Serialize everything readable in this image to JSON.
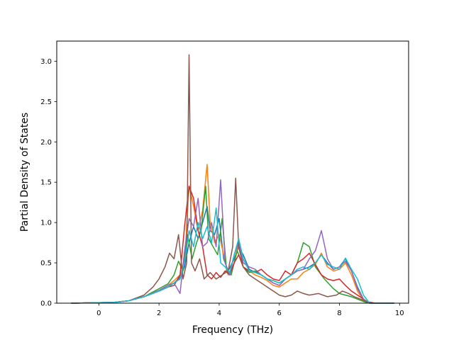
{
  "chart_data": {
    "type": "line",
    "title": "",
    "xlabel": "Frequency (THz)",
    "ylabel": "Partial Density of States",
    "xlim": [
      -1.4,
      10.3
    ],
    "ylim": [
      0,
      3.25
    ],
    "xticks": [
      0,
      2,
      4,
      6,
      8,
      10
    ],
    "xtick_labels": [
      "0",
      "2",
      "4",
      "6",
      "8",
      "10"
    ],
    "yticks": [
      0.0,
      0.5,
      1.0,
      1.5,
      2.0,
      2.5,
      3.0
    ],
    "ytick_labels": [
      "0.0",
      "0.5",
      "1.0",
      "1.5",
      "2.0",
      "2.5",
      "3.0"
    ],
    "grid": false,
    "legend": false,
    "series": [
      {
        "color": "#1f77b4",
        "x": [
          -0.9,
          0.5,
          1.0,
          1.5,
          2.0,
          2.3,
          2.5,
          2.7,
          2.85,
          3.0,
          3.15,
          3.3,
          3.45,
          3.6,
          3.7,
          3.85,
          4.0,
          4.15,
          4.3,
          4.5,
          4.65,
          4.8,
          5.0,
          5.2,
          5.4,
          5.6,
          5.8,
          6.0,
          6.2,
          6.4,
          6.6,
          6.8,
          7.0,
          7.2,
          7.4,
          7.6,
          7.8,
          8.0,
          8.2,
          8.4,
          8.6,
          8.8,
          9.0,
          9.8
        ],
        "y": [
          0.0,
          0.01,
          0.03,
          0.08,
          0.15,
          0.2,
          0.25,
          0.32,
          0.45,
          0.75,
          0.95,
          0.8,
          1.0,
          1.2,
          0.9,
          0.85,
          1.05,
          0.55,
          0.4,
          0.55,
          0.7,
          0.6,
          0.42,
          0.38,
          0.35,
          0.3,
          0.25,
          0.22,
          0.3,
          0.35,
          0.4,
          0.42,
          0.45,
          0.5,
          0.6,
          0.5,
          0.42,
          0.45,
          0.55,
          0.4,
          0.2,
          0.05,
          0.0,
          0.0
        ]
      },
      {
        "color": "#ff7f0e",
        "x": [
          -0.9,
          0.5,
          1.0,
          1.5,
          2.0,
          2.3,
          2.5,
          2.7,
          2.85,
          3.0,
          3.15,
          3.3,
          3.45,
          3.6,
          3.7,
          3.85,
          4.0,
          4.15,
          4.3,
          4.5,
          4.65,
          4.8,
          5.0,
          5.2,
          5.4,
          5.6,
          5.8,
          6.0,
          6.2,
          6.4,
          6.6,
          6.8,
          7.0,
          7.2,
          7.4,
          7.6,
          7.8,
          8.0,
          8.2,
          8.4,
          8.6,
          8.8,
          9.0,
          9.8
        ],
        "y": [
          0.0,
          0.01,
          0.03,
          0.08,
          0.16,
          0.22,
          0.28,
          0.35,
          0.5,
          1.45,
          1.2,
          0.9,
          1.15,
          1.72,
          1.0,
          0.75,
          0.85,
          0.6,
          0.35,
          0.5,
          0.75,
          0.55,
          0.4,
          0.35,
          0.32,
          0.28,
          0.22,
          0.2,
          0.25,
          0.3,
          0.3,
          0.38,
          0.42,
          0.48,
          0.62,
          0.45,
          0.4,
          0.42,
          0.5,
          0.35,
          0.15,
          0.03,
          0.0,
          0.0
        ]
      },
      {
        "color": "#2ca02c",
        "x": [
          -0.9,
          0.5,
          1.0,
          1.5,
          2.0,
          2.3,
          2.5,
          2.65,
          2.8,
          2.95,
          3.1,
          3.25,
          3.4,
          3.55,
          3.65,
          3.8,
          3.95,
          4.1,
          4.25,
          4.4,
          4.6,
          4.8,
          5.0,
          5.2,
          5.4,
          5.6,
          5.8,
          6.0,
          6.2,
          6.4,
          6.6,
          6.8,
          7.0,
          7.2,
          7.5,
          7.8,
          8.0,
          8.2,
          8.4,
          8.6,
          8.8,
          9.0,
          9.8
        ],
        "y": [
          0.0,
          0.01,
          0.03,
          0.08,
          0.18,
          0.24,
          0.35,
          0.52,
          0.4,
          0.85,
          0.55,
          0.75,
          0.9,
          1.45,
          0.8,
          0.7,
          0.6,
          1.05,
          0.4,
          0.35,
          0.65,
          0.45,
          0.38,
          0.4,
          0.35,
          0.3,
          0.28,
          0.25,
          0.3,
          0.35,
          0.5,
          0.75,
          0.7,
          0.45,
          0.3,
          0.18,
          0.12,
          0.1,
          0.08,
          0.05,
          0.02,
          0.0,
          0.0
        ]
      },
      {
        "color": "#d62728",
        "x": [
          -0.9,
          0.5,
          1.0,
          1.5,
          2.0,
          2.3,
          2.5,
          2.7,
          2.85,
          3.0,
          3.15,
          3.3,
          3.45,
          3.6,
          3.75,
          3.9,
          4.05,
          4.2,
          4.35,
          4.5,
          4.65,
          4.8,
          5.0,
          5.2,
          5.4,
          5.6,
          5.8,
          6.0,
          6.2,
          6.4,
          6.6,
          6.8,
          7.0,
          7.2,
          7.4,
          7.6,
          7.8,
          8.0,
          8.2,
          8.4,
          8.6,
          8.8,
          9.0,
          9.8
        ],
        "y": [
          0.0,
          0.01,
          0.03,
          0.08,
          0.15,
          0.2,
          0.22,
          0.35,
          0.95,
          1.45,
          1.3,
          0.9,
          0.7,
          0.35,
          0.3,
          0.38,
          0.32,
          0.4,
          0.35,
          0.5,
          0.6,
          0.45,
          0.4,
          0.38,
          0.42,
          0.35,
          0.3,
          0.28,
          0.4,
          0.35,
          0.5,
          0.55,
          0.62,
          0.48,
          0.35,
          0.3,
          0.28,
          0.3,
          0.22,
          0.15,
          0.1,
          0.05,
          0.0,
          0.0
        ]
      },
      {
        "color": "#9467bd",
        "x": [
          -0.9,
          0.5,
          1.0,
          1.5,
          2.0,
          2.3,
          2.5,
          2.7,
          2.85,
          3.0,
          3.15,
          3.3,
          3.45,
          3.6,
          3.75,
          3.9,
          4.05,
          4.2,
          4.35,
          4.5,
          4.65,
          4.8,
          5.0,
          5.2,
          5.4,
          5.6,
          5.8,
          6.0,
          6.2,
          6.4,
          6.6,
          6.8,
          7.0,
          7.2,
          7.4,
          7.6,
          7.8,
          8.0,
          8.2,
          8.4,
          8.6,
          8.8,
          9.0,
          9.8
        ],
        "y": [
          0.0,
          0.01,
          0.03,
          0.08,
          0.16,
          0.22,
          0.25,
          0.12,
          0.65,
          1.05,
          0.95,
          1.3,
          0.7,
          0.75,
          1.0,
          0.7,
          1.53,
          0.5,
          0.35,
          0.6,
          0.75,
          0.5,
          0.45,
          0.42,
          0.35,
          0.3,
          0.25,
          0.22,
          0.3,
          0.35,
          0.4,
          0.42,
          0.55,
          0.65,
          0.9,
          0.55,
          0.42,
          0.45,
          0.52,
          0.4,
          0.18,
          0.05,
          0.0,
          0.0
        ]
      },
      {
        "color": "#8c564b",
        "x": [
          -0.9,
          0.5,
          1.0,
          1.5,
          1.8,
          2.0,
          2.2,
          2.35,
          2.5,
          2.65,
          2.8,
          2.92,
          3.0,
          3.08,
          3.2,
          3.35,
          3.5,
          3.7,
          3.9,
          4.1,
          4.3,
          4.45,
          4.55,
          4.65,
          4.8,
          5.0,
          5.2,
          5.4,
          5.6,
          5.8,
          6.0,
          6.2,
          6.4,
          6.6,
          6.8,
          7.0,
          7.3,
          7.6,
          7.9,
          8.1,
          8.3,
          8.5,
          8.7,
          8.9,
          9.2,
          9.8
        ],
        "y": [
          0.0,
          0.01,
          0.03,
          0.1,
          0.2,
          0.3,
          0.45,
          0.62,
          0.55,
          0.85,
          0.3,
          0.5,
          3.08,
          0.5,
          0.4,
          0.55,
          0.3,
          0.38,
          0.3,
          0.35,
          0.4,
          0.7,
          1.55,
          0.7,
          0.45,
          0.35,
          0.3,
          0.25,
          0.2,
          0.15,
          0.1,
          0.08,
          0.1,
          0.15,
          0.12,
          0.1,
          0.12,
          0.08,
          0.1,
          0.15,
          0.12,
          0.08,
          0.05,
          0.02,
          0.0,
          0.0
        ]
      },
      {
        "color": "#17becf",
        "x": [
          -0.9,
          0.5,
          1.0,
          1.5,
          2.0,
          2.3,
          2.5,
          2.7,
          2.85,
          3.0,
          3.15,
          3.3,
          3.45,
          3.6,
          3.75,
          3.9,
          4.05,
          4.2,
          4.35,
          4.5,
          4.65,
          4.8,
          5.0,
          5.2,
          5.4,
          5.6,
          5.8,
          6.0,
          6.2,
          6.4,
          6.6,
          6.8,
          7.0,
          7.2,
          7.4,
          7.6,
          7.8,
          8.0,
          8.2,
          8.4,
          8.6,
          8.8,
          9.0,
          9.8
        ],
        "y": [
          0.0,
          0.01,
          0.03,
          0.08,
          0.15,
          0.2,
          0.25,
          0.3,
          0.5,
          0.9,
          0.7,
          1.0,
          0.8,
          0.95,
          0.75,
          1.18,
          0.5,
          0.45,
          0.38,
          0.6,
          0.8,
          0.55,
          0.4,
          0.38,
          0.35,
          0.3,
          0.28,
          0.25,
          0.3,
          0.35,
          0.42,
          0.45,
          0.42,
          0.5,
          0.6,
          0.48,
          0.45,
          0.42,
          0.56,
          0.42,
          0.3,
          0.1,
          0.0,
          0.0
        ]
      }
    ]
  }
}
